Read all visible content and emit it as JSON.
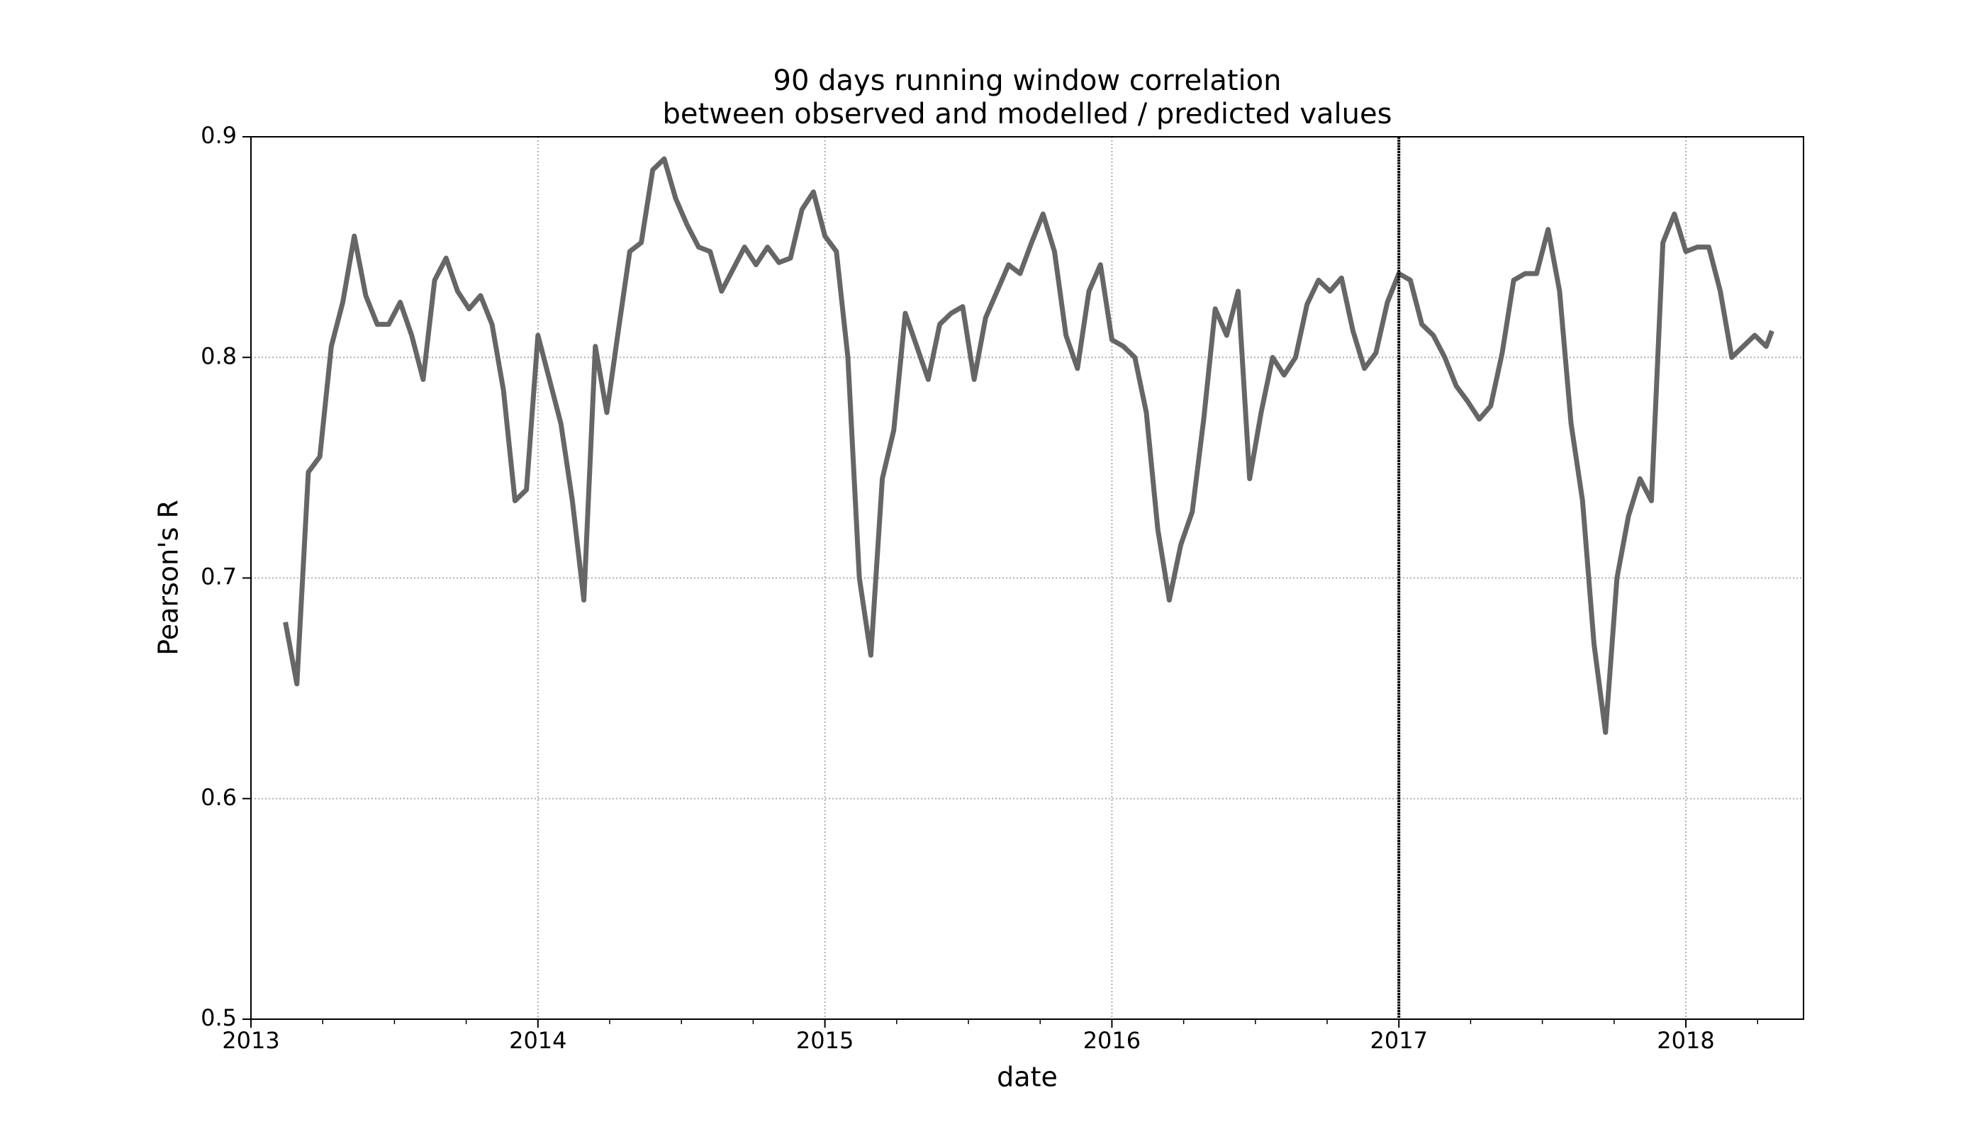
{
  "chart_data": {
    "type": "line",
    "title": "90 days running window correlation",
    "subtitle": "between observed and modelled / predicted values",
    "x_label": "date",
    "y_label": "Pearson's R",
    "x": [
      2013.12,
      2013.16,
      2013.2,
      2013.24,
      2013.28,
      2013.32,
      2013.36,
      2013.4,
      2013.44,
      2013.48,
      2013.52,
      2013.56,
      2013.6,
      2013.64,
      2013.68,
      2013.72,
      2013.76,
      2013.8,
      2013.84,
      2013.88,
      2013.92,
      2013.96,
      2014.0,
      2014.04,
      2014.08,
      2014.12,
      2014.16,
      2014.2,
      2014.24,
      2014.28,
      2014.32,
      2014.36,
      2014.4,
      2014.44,
      2014.48,
      2014.52,
      2014.56,
      2014.6,
      2014.64,
      2014.68,
      2014.72,
      2014.76,
      2014.8,
      2014.84,
      2014.88,
      2014.92,
      2014.96,
      2015.0,
      2015.04,
      2015.08,
      2015.12,
      2015.16,
      2015.2,
      2015.24,
      2015.28,
      2015.32,
      2015.36,
      2015.4,
      2015.44,
      2015.48,
      2015.52,
      2015.56,
      2015.6,
      2015.64,
      2015.68,
      2015.72,
      2015.76,
      2015.8,
      2015.84,
      2015.88,
      2015.92,
      2015.96,
      2016.0,
      2016.04,
      2016.08,
      2016.12,
      2016.16,
      2016.2,
      2016.24,
      2016.28,
      2016.32,
      2016.36,
      2016.4,
      2016.44,
      2016.48,
      2016.52,
      2016.56,
      2016.6,
      2016.64,
      2016.68,
      2016.72,
      2016.76,
      2016.8,
      2016.84,
      2016.88,
      2016.92,
      2016.96,
      2017.0,
      2017.04,
      2017.08,
      2017.12,
      2017.16,
      2017.2,
      2017.24,
      2017.28,
      2017.32,
      2017.36,
      2017.4,
      2017.44,
      2017.48,
      2017.52,
      2017.56,
      2017.6,
      2017.64,
      2017.68,
      2017.72,
      2017.76,
      2017.8,
      2017.84,
      2017.88,
      2017.92,
      2017.96,
      2018.0,
      2018.04,
      2018.08,
      2018.12,
      2018.16,
      2018.2,
      2018.24,
      2018.28,
      2018.3
    ],
    "series": [
      {
        "name": "Pearson's R",
        "color": "#666666",
        "values": [
          0.68,
          0.652,
          0.748,
          0.755,
          0.805,
          0.825,
          0.855,
          0.828,
          0.815,
          0.815,
          0.825,
          0.81,
          0.79,
          0.835,
          0.845,
          0.83,
          0.822,
          0.828,
          0.815,
          0.785,
          0.735,
          0.74,
          0.81,
          0.79,
          0.77,
          0.735,
          0.69,
          0.805,
          0.775,
          0.812,
          0.848,
          0.852,
          0.885,
          0.89,
          0.872,
          0.86,
          0.85,
          0.848,
          0.83,
          0.84,
          0.85,
          0.842,
          0.85,
          0.843,
          0.845,
          0.867,
          0.875,
          0.855,
          0.848,
          0.8,
          0.7,
          0.665,
          0.745,
          0.767,
          0.82,
          0.805,
          0.79,
          0.815,
          0.82,
          0.823,
          0.79,
          0.818,
          0.83,
          0.842,
          0.838,
          0.852,
          0.865,
          0.848,
          0.81,
          0.795,
          0.83,
          0.842,
          0.808,
          0.805,
          0.8,
          0.775,
          0.722,
          0.69,
          0.715,
          0.73,
          0.772,
          0.822,
          0.81,
          0.83,
          0.745,
          0.775,
          0.8,
          0.792,
          0.8,
          0.824,
          0.835,
          0.83,
          0.836,
          0.812,
          0.795,
          0.802,
          0.825,
          0.838,
          0.835,
          0.815,
          0.81,
          0.8,
          0.787,
          0.78,
          0.772,
          0.778,
          0.802,
          0.835,
          0.838,
          0.838,
          0.858,
          0.83,
          0.77,
          0.735,
          0.67,
          0.63,
          0.7,
          0.728,
          0.745,
          0.735,
          0.852,
          0.865,
          0.848,
          0.85,
          0.85,
          0.83,
          0.8,
          0.805,
          0.81,
          0.805,
          0.812
        ]
      }
    ],
    "xlim": [
      2013,
      2018.41
    ],
    "xticks": [
      2013,
      2014,
      2015,
      2016,
      2017,
      2018
    ],
    "xminorticks": [
      2013.25,
      2013.5,
      2013.75,
      2014.25,
      2014.5,
      2014.75,
      2015.25,
      2015.5,
      2015.75,
      2016.25,
      2016.5,
      2016.75,
      2017.25,
      2017.5,
      2017.75,
      2018.25
    ],
    "ylim": [
      0.5,
      0.9
    ],
    "yticks": [
      0.5,
      0.6,
      0.7,
      0.8,
      0.9
    ],
    "vline": 2017,
    "grid": true
  }
}
